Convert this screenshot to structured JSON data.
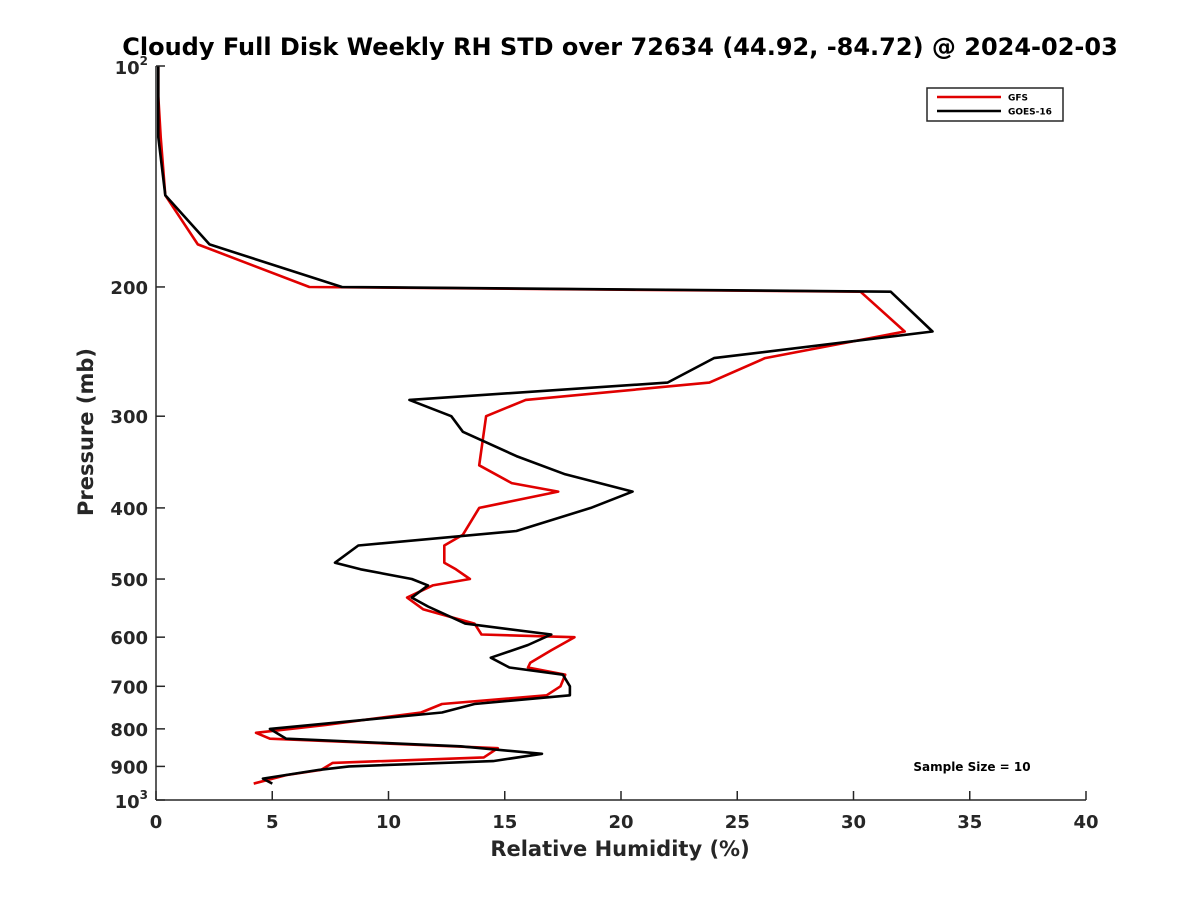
{
  "chart_data": {
    "type": "line",
    "title": "Cloudy Full Disk Weekly RH STD over 72634 (44.92, -84.72) @ 2024-02-03",
    "xlabel": "Relative Humidity (%)",
    "ylabel": "Pressure (mb)",
    "xlim": [
      0,
      40
    ],
    "ylim": [
      100,
      1000
    ],
    "y_scale": "log",
    "y_reversed": true,
    "x_ticks": [
      0,
      5,
      10,
      15,
      20,
      25,
      30,
      35,
      40
    ],
    "x_tick_labels": [
      "0",
      "5",
      "10",
      "15",
      "20",
      "25",
      "30",
      "35",
      "40"
    ],
    "y_ticks": [
      200,
      300,
      400,
      500,
      600,
      700,
      800,
      900
    ],
    "y_tick_labels": [
      "200",
      "300",
      "400",
      "500",
      "600",
      "700",
      "800",
      "900"
    ],
    "y_end_ticks": [
      {
        "value": 100,
        "base": "10",
        "exp": "2"
      },
      {
        "value": 1000,
        "base": "10",
        "exp": "3"
      }
    ],
    "grid": false,
    "legend_position": "top-right",
    "series": [
      {
        "name": "GFS",
        "color": "#e00000",
        "points": [
          [
            0.1,
            100
          ],
          [
            0.1,
            110
          ],
          [
            0.2,
            125
          ],
          [
            0.4,
            150
          ],
          [
            1.8,
            175
          ],
          [
            6.6,
            200
          ],
          [
            30.3,
            203
          ],
          [
            32.2,
            230
          ],
          [
            26.2,
            250
          ],
          [
            23.8,
            270
          ],
          [
            15.9,
            285
          ],
          [
            14.2,
            300
          ],
          [
            13.9,
            350
          ],
          [
            15.3,
            370
          ],
          [
            17.3,
            380
          ],
          [
            13.9,
            400
          ],
          [
            13.2,
            435
          ],
          [
            12.4,
            450
          ],
          [
            12.4,
            475
          ],
          [
            12.9,
            485
          ],
          [
            13.5,
            500
          ],
          [
            11.9,
            510
          ],
          [
            10.8,
            530
          ],
          [
            11.5,
            550
          ],
          [
            13.7,
            575
          ],
          [
            14.0,
            595
          ],
          [
            18.0,
            600
          ],
          [
            17.0,
            625
          ],
          [
            16.1,
            650
          ],
          [
            16.0,
            660
          ],
          [
            17.6,
            675
          ],
          [
            17.4,
            700
          ],
          [
            16.8,
            720
          ],
          [
            12.3,
            740
          ],
          [
            11.4,
            760
          ],
          [
            7.3,
            790
          ],
          [
            4.3,
            810
          ],
          [
            4.9,
            825
          ],
          [
            14.7,
            850
          ],
          [
            14.1,
            875
          ],
          [
            7.6,
            890
          ],
          [
            7.1,
            910
          ],
          [
            5.6,
            925
          ],
          [
            4.2,
            950
          ]
        ]
      },
      {
        "name": "GOES-16",
        "color": "#000000",
        "points": [
          [
            0.1,
            100
          ],
          [
            0.1,
            110
          ],
          [
            0.1,
            125
          ],
          [
            0.4,
            150
          ],
          [
            2.3,
            175
          ],
          [
            8.0,
            200
          ],
          [
            31.6,
            203
          ],
          [
            33.4,
            230
          ],
          [
            24.0,
            250
          ],
          [
            22.0,
            270
          ],
          [
            10.9,
            285
          ],
          [
            12.7,
            300
          ],
          [
            13.2,
            315
          ],
          [
            15.5,
            340
          ],
          [
            17.6,
            360
          ],
          [
            20.5,
            380
          ],
          [
            18.7,
            400
          ],
          [
            15.5,
            430
          ],
          [
            8.7,
            450
          ],
          [
            7.7,
            475
          ],
          [
            8.8,
            485
          ],
          [
            11.0,
            500
          ],
          [
            11.7,
            510
          ],
          [
            11.0,
            530
          ],
          [
            11.7,
            545
          ],
          [
            13.3,
            575
          ],
          [
            17.0,
            595
          ],
          [
            16.0,
            615
          ],
          [
            14.4,
            640
          ],
          [
            15.2,
            660
          ],
          [
            17.5,
            675
          ],
          [
            17.8,
            700
          ],
          [
            17.8,
            720
          ],
          [
            13.7,
            740
          ],
          [
            12.3,
            760
          ],
          [
            4.9,
            800
          ],
          [
            5.6,
            825
          ],
          [
            13.1,
            845
          ],
          [
            16.6,
            865
          ],
          [
            14.5,
            885
          ],
          [
            8.3,
            900
          ],
          [
            7.0,
            910
          ],
          [
            4.6,
            935
          ],
          [
            5.0,
            950
          ]
        ]
      }
    ],
    "annotation": "Sample Size = 10"
  }
}
